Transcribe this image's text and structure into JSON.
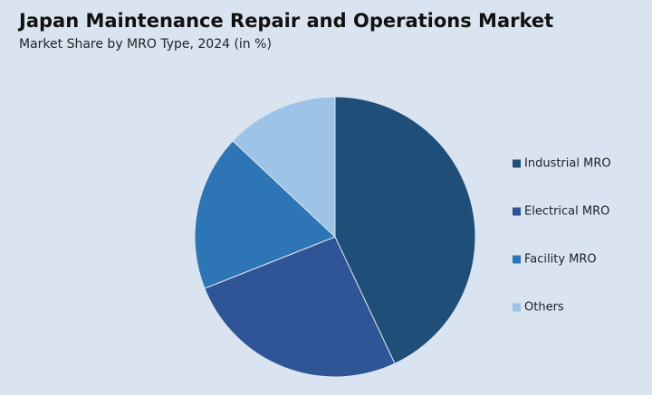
{
  "chart_data": {
    "type": "pie",
    "title": "Japan Maintenance Repair and Operations Market",
    "subtitle": "Market Share by MRO Type, 2024 (in %)",
    "categories": [
      "Industrial MRO",
      "Electrical MRO",
      "Facility MRO",
      "Others"
    ],
    "values": [
      43,
      26,
      18,
      13
    ],
    "colors": [
      "#1f4e79",
      "#2f5597",
      "#2e75b6",
      "#9dc3e6"
    ],
    "legend": "right"
  }
}
